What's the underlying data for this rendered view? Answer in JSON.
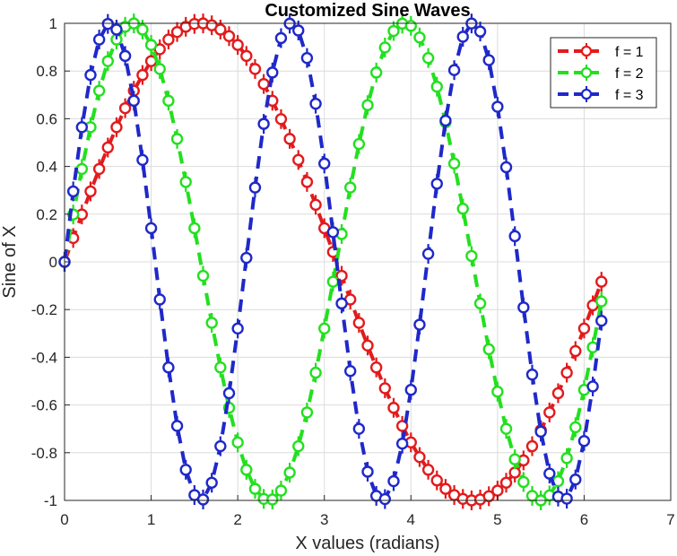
{
  "chart_data": {
    "type": "line",
    "title": "Customized Sine Waves",
    "xlabel": "X values (radians)",
    "ylabel": "Sine of X",
    "xlim": [
      0,
      7
    ],
    "ylim": [
      -1,
      1
    ],
    "grid": true,
    "legend_position": "top-right",
    "x_ticks": [
      0,
      1,
      2,
      3,
      4,
      5,
      6,
      7
    ],
    "x_tick_labels": [
      "0",
      "1",
      "2",
      "3",
      "4",
      "5",
      "6",
      "7"
    ],
    "y_ticks": [
      -1,
      -0.8,
      -0.6,
      -0.4,
      -0.2,
      0,
      0.2,
      0.4,
      0.6,
      0.8,
      1
    ],
    "y_tick_labels": [
      "-1",
      "-0.8",
      "-0.6",
      "-0.4",
      "-0.2",
      "0",
      "0.2",
      "0.4",
      "0.6",
      "0.8",
      "1"
    ],
    "x_start": 0,
    "x_step": 0.1,
    "x_count": 63,
    "series": [
      {
        "name": "f = 1",
        "frequency": 1,
        "color": "#e31a1c",
        "line_style": "dashed",
        "marker": "circle"
      },
      {
        "name": "f = 2",
        "frequency": 2,
        "color": "#22e01e",
        "line_style": "dashed",
        "marker": "circle"
      },
      {
        "name": "f = 3",
        "frequency": 3,
        "color": "#1f28c9",
        "line_style": "dashed",
        "marker": "circle"
      }
    ]
  }
}
